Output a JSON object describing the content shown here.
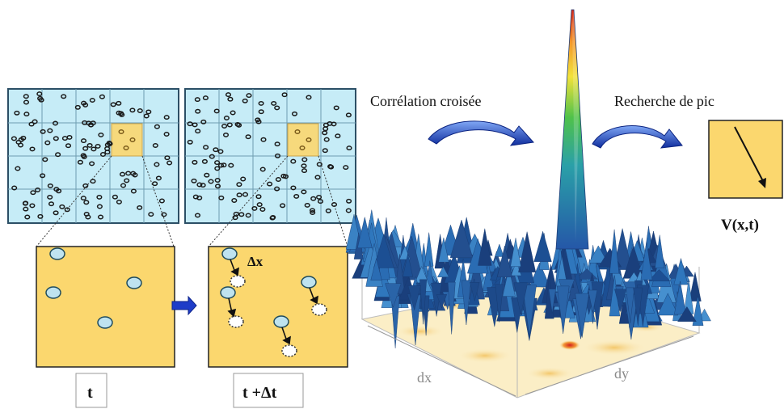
{
  "labels": {
    "cross_correlation": "Corrélation croisée",
    "peak_search": "Recherche de pic",
    "velocity": "V(x,t)",
    "time_t": "t",
    "time_t_dt": "t +Δt",
    "delta_x": "Δx",
    "axis_dx": "dx",
    "axis_dy": "dy"
  },
  "colors": {
    "grid_fill": "#c6ecf7",
    "grid_line": "#5e8fa3",
    "window_fill": "#fbd76e",
    "particle_fill": "#bfe3ef",
    "arrow_blue": "#1e3cc8",
    "surface_blue": "#2e6db0",
    "peak_red": "#d62a1c"
  }
}
